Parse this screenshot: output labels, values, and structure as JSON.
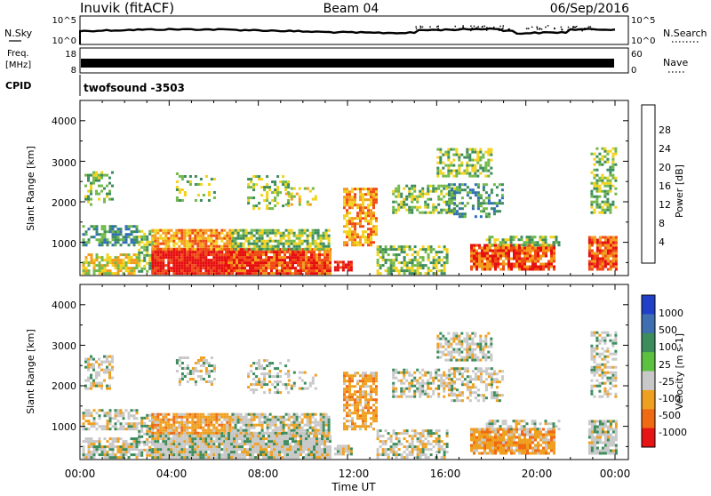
{
  "header": {
    "station": "Inuvik (fitACF)",
    "beam": "Beam 04",
    "date": "06/Sep/2016"
  },
  "noise_panel": {
    "left_label": "N.Sky",
    "left_ticks": [
      "10^5",
      "10^0"
    ],
    "right_ticks": [
      "10^5",
      "10^0"
    ],
    "right_label": "N.Search"
  },
  "freq_panel": {
    "left_label_top": "Freq.",
    "left_label_unit": "[MHz]",
    "left_ticks": [
      "18",
      "8"
    ],
    "right_ticks": [
      "60",
      "0"
    ],
    "right_label": "Nave"
  },
  "cpid": {
    "label": "CPID",
    "value": "twofsound -3503"
  },
  "x_axis": {
    "title": "Time UT",
    "ticks": [
      "00:00",
      "04:00",
      "08:00",
      "12:00",
      "16:00",
      "20:00",
      "00:00"
    ]
  },
  "chart_data": [
    {
      "type": "heatmap",
      "title": "",
      "xlabel": "Time UT",
      "ylabel": "Slant Range [km]",
      "xlim_hours": [
        0,
        24
      ],
      "ylim_km": [
        180,
        4500
      ],
      "y_ticks": [
        "1000",
        "2000",
        "3000",
        "4000"
      ],
      "colorbar": {
        "label": "Power [dB]",
        "ticks": [
          "4",
          "8",
          "12",
          "16",
          "20",
          "24",
          "28"
        ],
        "colors": [
          "#1c1ce6",
          "#2e6fb4",
          "#3c8c5c",
          "#72b84a",
          "#f2d21c",
          "#f39c1c",
          "#f04a14",
          "#e60e0e"
        ]
      }
    },
    {
      "type": "heatmap",
      "title": "",
      "xlabel": "Time UT",
      "ylabel": "Slant Range [km]",
      "xlim_hours": [
        0,
        24
      ],
      "ylim_km": [
        180,
        4500
      ],
      "y_ticks": [
        "1000",
        "2000",
        "3000",
        "4000"
      ],
      "colorbar": {
        "label": "Velocity [m s-1]",
        "ticks": [
          "1000",
          "500",
          "100",
          "25",
          "-25",
          "-100",
          "-500",
          "-1000"
        ],
        "colors": [
          "#2040c8",
          "#3f6fb0",
          "#3c8c5c",
          "#5cc040",
          "#c8c8c8",
          "#f0a020",
          "#f06a14",
          "#e61414"
        ]
      }
    }
  ]
}
